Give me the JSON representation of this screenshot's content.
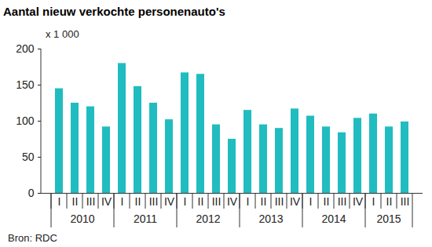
{
  "chart_data": {
    "type": "bar",
    "title": "Aantal nieuw verkochte personenauto's",
    "ylabel": "x 1 000",
    "source": "Bron: RDC",
    "categories": [
      "I",
      "II",
      "III",
      "IV",
      "I",
      "II",
      "III",
      "IV",
      "I",
      "II",
      "III",
      "IV",
      "I",
      "II",
      "III",
      "IV",
      "I",
      "II",
      "III",
      "IV",
      "I",
      "II",
      "III"
    ],
    "groups": [
      {
        "label": "2010",
        "count": 4
      },
      {
        "label": "2011",
        "count": 4
      },
      {
        "label": "2012",
        "count": 4
      },
      {
        "label": "2013",
        "count": 4
      },
      {
        "label": "2014",
        "count": 4
      },
      {
        "label": "2015",
        "count": 3
      }
    ],
    "values": [
      145,
      125,
      120,
      92,
      180,
      148,
      125,
      102,
      167,
      165,
      95,
      75,
      115,
      95,
      90,
      117,
      107,
      92,
      84,
      104,
      110,
      92,
      99
    ],
    "color": "#21bcc0",
    "ylim": [
      0,
      200
    ],
    "yticks": [
      0,
      50,
      100,
      150,
      200
    ],
    "grid": false
  }
}
